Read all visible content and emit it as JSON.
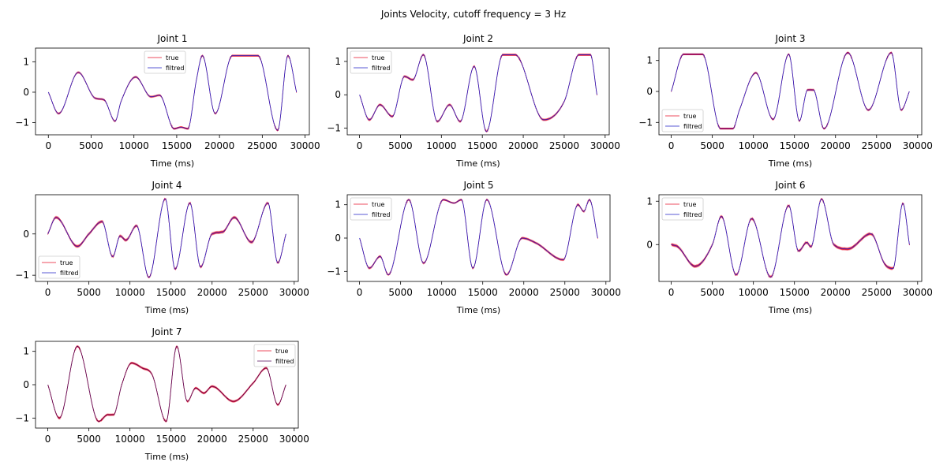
{
  "suptitle": "Joints Velocity, cutoff frequency = 3 Hz",
  "legend_labels": [
    "true",
    "filtred"
  ],
  "colors": {
    "true": "#e8102a",
    "filtred": "#2323c8",
    "true7": "#e8102a",
    "filtred7": "#550a5a"
  },
  "chart_data": [
    {
      "type": "line",
      "title": "Joint 1",
      "xlabel": "Time (ms)",
      "ylabel": "",
      "xlim": [
        -1500,
        30500
      ],
      "ylim": [
        -1.4,
        1.45
      ],
      "xticks": [
        0,
        5000,
        10000,
        15000,
        20000,
        25000,
        30000
      ],
      "yticks": [
        -1,
        0,
        1
      ],
      "legend": "upper-center",
      "series_points": [
        [
          0,
          0
        ],
        [
          1200,
          -0.7
        ],
        [
          3500,
          0.65
        ],
        [
          5500,
          -0.2
        ],
        [
          6500,
          -0.25
        ],
        [
          7800,
          -0.95
        ],
        [
          8500,
          -0.3
        ],
        [
          10200,
          0.5
        ],
        [
          12000,
          -0.15
        ],
        [
          13000,
          -0.1
        ],
        [
          14700,
          -1.2
        ],
        [
          15500,
          -1.15
        ],
        [
          16300,
          -1.2
        ],
        [
          17300,
          0.4
        ],
        [
          18000,
          1.2
        ],
        [
          19500,
          -0.7
        ],
        [
          21500,
          1.2
        ],
        [
          24500,
          1.2
        ],
        [
          26800,
          -1.25
        ],
        [
          28000,
          1.2
        ],
        [
          29000,
          0
        ]
      ]
    },
    {
      "type": "line",
      "title": "Joint 2",
      "xlabel": "Time (ms)",
      "ylabel": "",
      "xlim": [
        -1500,
        30500
      ],
      "ylim": [
        -1.2,
        1.4
      ],
      "xticks": [
        0,
        5000,
        10000,
        15000,
        20000,
        25000,
        30000
      ],
      "yticks": [
        -1,
        0,
        1
      ],
      "legend": "upper-left",
      "series_points": [
        [
          0,
          0
        ],
        [
          1200,
          -0.75
        ],
        [
          2500,
          -0.3
        ],
        [
          4000,
          -0.65
        ],
        [
          5500,
          0.55
        ],
        [
          6500,
          0.45
        ],
        [
          7800,
          1.2
        ],
        [
          9500,
          -0.8
        ],
        [
          11000,
          -0.3
        ],
        [
          12300,
          -0.8
        ],
        [
          14000,
          0.85
        ],
        [
          15500,
          -1.1
        ],
        [
          17500,
          1.2
        ],
        [
          19000,
          1.2
        ],
        [
          22500,
          -0.75
        ],
        [
          25000,
          -0.2
        ],
        [
          26800,
          1.2
        ],
        [
          28200,
          1.2
        ],
        [
          29000,
          0
        ]
      ]
    },
    {
      "type": "line",
      "title": "Joint 3",
      "xlabel": "Time (ms)",
      "ylabel": "",
      "xlim": [
        -1500,
        30500
      ],
      "ylim": [
        -1.4,
        1.4
      ],
      "xticks": [
        0,
        5000,
        10000,
        15000,
        20000,
        25000,
        30000
      ],
      "yticks": [
        -1,
        0,
        1
      ],
      "legend": "lower-left",
      "series_points": [
        [
          0,
          0
        ],
        [
          1500,
          1.2
        ],
        [
          3800,
          1.2
        ],
        [
          6000,
          -1.2
        ],
        [
          7500,
          -1.2
        ],
        [
          8300,
          -0.6
        ],
        [
          10300,
          0.6
        ],
        [
          12400,
          -0.9
        ],
        [
          14300,
          1.2
        ],
        [
          15600,
          -0.95
        ],
        [
          16600,
          0.05
        ],
        [
          17300,
          0.05
        ],
        [
          18600,
          -1.2
        ],
        [
          21500,
          1.25
        ],
        [
          24000,
          -0.6
        ],
        [
          26800,
          1.25
        ],
        [
          28000,
          -0.6
        ],
        [
          29000,
          0
        ]
      ]
    },
    {
      "type": "line",
      "title": "Joint 4",
      "xlabel": "Time (ms)",
      "ylabel": "",
      "xlim": [
        -1500,
        30500
      ],
      "ylim": [
        -1.15,
        0.95
      ],
      "xticks": [
        0,
        5000,
        10000,
        15000,
        20000,
        25000,
        30000
      ],
      "yticks": [
        -1,
        0
      ],
      "legend": "lower-left",
      "series_points": [
        [
          0,
          0
        ],
        [
          1000,
          0.4
        ],
        [
          3600,
          -0.3
        ],
        [
          5000,
          0
        ],
        [
          6600,
          0.3
        ],
        [
          7900,
          -0.55
        ],
        [
          8800,
          -0.05
        ],
        [
          9500,
          -0.15
        ],
        [
          10800,
          0.2
        ],
        [
          12300,
          -1.05
        ],
        [
          14300,
          0.85
        ],
        [
          15500,
          -0.85
        ],
        [
          17300,
          0.75
        ],
        [
          18600,
          -0.8
        ],
        [
          20000,
          0
        ],
        [
          21300,
          0.05
        ],
        [
          22700,
          0.4
        ],
        [
          24800,
          -0.2
        ],
        [
          26800,
          0.75
        ],
        [
          28000,
          -0.7
        ],
        [
          29000,
          0
        ]
      ]
    },
    {
      "type": "line",
      "title": "Joint 5",
      "xlabel": "Time (ms)",
      "ylabel": "",
      "xlim": [
        -1500,
        30500
      ],
      "ylim": [
        -1.3,
        1.3
      ],
      "xticks": [
        0,
        5000,
        10000,
        15000,
        20000,
        25000,
        30000
      ],
      "yticks": [
        -1,
        0,
        1
      ],
      "legend": "upper-left",
      "series_points": [
        [
          0,
          0
        ],
        [
          1200,
          -0.9
        ],
        [
          2500,
          -0.55
        ],
        [
          3500,
          -1.1
        ],
        [
          6000,
          1.15
        ],
        [
          7800,
          -0.75
        ],
        [
          10200,
          1.15
        ],
        [
          11500,
          1.05
        ],
        [
          12400,
          1.15
        ],
        [
          13800,
          -0.9
        ],
        [
          15500,
          1.15
        ],
        [
          17900,
          -1.1
        ],
        [
          19800,
          0
        ],
        [
          21500,
          -0.15
        ],
        [
          24800,
          -0.65
        ],
        [
          26600,
          1.0
        ],
        [
          27300,
          0.8
        ],
        [
          28000,
          1.15
        ],
        [
          29000,
          0
        ]
      ]
    },
    {
      "type": "line",
      "title": "Joint 6",
      "xlabel": "Time (ms)",
      "ylabel": "",
      "xlim": [
        -1500,
        30500
      ],
      "ylim": [
        -0.85,
        1.15
      ],
      "xticks": [
        0,
        5000,
        10000,
        15000,
        20000,
        25000,
        30000
      ],
      "yticks": [
        0,
        1
      ],
      "legend": "upper-left",
      "series_points": [
        [
          0,
          0
        ],
        [
          800,
          -0.05
        ],
        [
          2900,
          -0.5
        ],
        [
          5000,
          0
        ],
        [
          6100,
          0.65
        ],
        [
          7900,
          -0.7
        ],
        [
          9800,
          0.6
        ],
        [
          12100,
          -0.75
        ],
        [
          14300,
          0.9
        ],
        [
          15500,
          -0.15
        ],
        [
          16500,
          0.05
        ],
        [
          17000,
          -0.05
        ],
        [
          18300,
          1.05
        ],
        [
          19800,
          0
        ],
        [
          21500,
          -0.1
        ],
        [
          24300,
          0.25
        ],
        [
          26000,
          -0.45
        ],
        [
          27000,
          -0.55
        ],
        [
          28200,
          0.95
        ],
        [
          29000,
          0
        ]
      ]
    },
    {
      "type": "line",
      "title": "Joint 7",
      "xlabel": "Time (ms)",
      "ylabel": "",
      "xlim": [
        -1500,
        30500
      ],
      "ylim": [
        -1.3,
        1.3
      ],
      "xticks": [
        0,
        5000,
        10000,
        15000,
        20000,
        25000,
        30000
      ],
      "yticks": [
        -1,
        0,
        1
      ],
      "legend": "upper-right",
      "series_points": [
        [
          0,
          0
        ],
        [
          1400,
          -1.0
        ],
        [
          3600,
          1.15
        ],
        [
          6200,
          -1.1
        ],
        [
          7300,
          -0.9
        ],
        [
          8000,
          -0.9
        ],
        [
          9000,
          0
        ],
        [
          10200,
          0.65
        ],
        [
          11500,
          0.5
        ],
        [
          12700,
          0.3
        ],
        [
          14400,
          -1.1
        ],
        [
          15700,
          1.15
        ],
        [
          17000,
          -0.5
        ],
        [
          18000,
          -0.1
        ],
        [
          19000,
          -0.25
        ],
        [
          20000,
          -0.05
        ],
        [
          22600,
          -0.5
        ],
        [
          25000,
          0.05
        ],
        [
          26600,
          0.5
        ],
        [
          28000,
          -0.6
        ],
        [
          29000,
          0
        ]
      ]
    }
  ]
}
